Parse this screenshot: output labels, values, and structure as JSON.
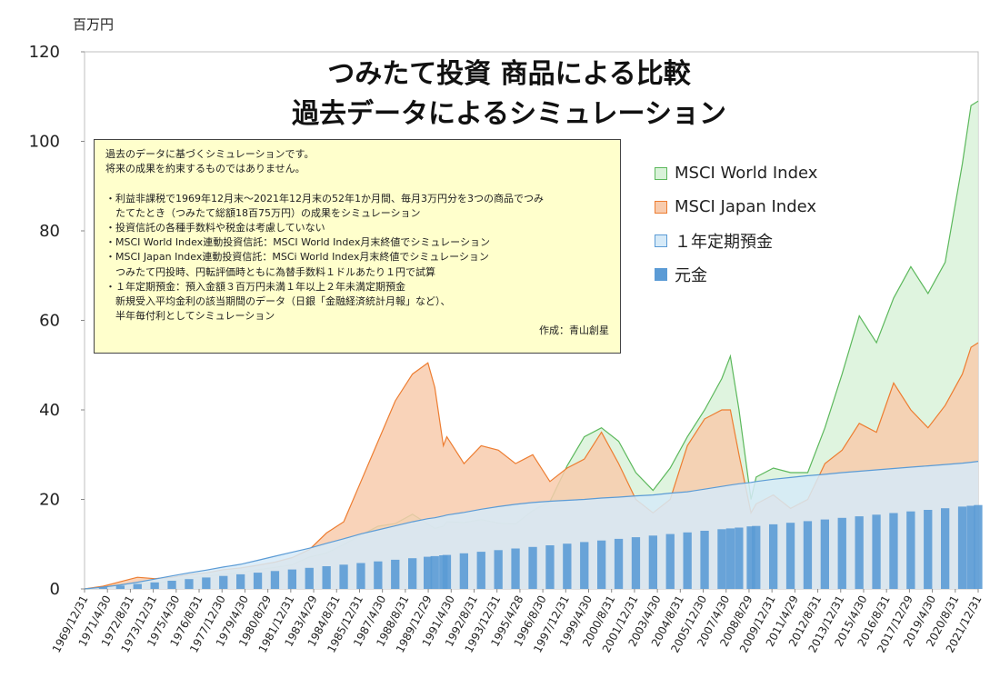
{
  "chart_data": {
    "type": "area",
    "title_lines": [
      "つみたて投資 商品による比較",
      "過去データによるシミュレーション"
    ],
    "y_unit": "百万円",
    "ylim": [
      0,
      120
    ],
    "yticks": [
      0,
      20,
      40,
      60,
      80,
      100,
      120
    ],
    "x_labels": [
      "1969/12/31",
      "1971/4/30",
      "1972/8/31",
      "1973/12/31",
      "1975/4/30",
      "1976/8/31",
      "1977/12/30",
      "1979/4/30",
      "1980/8/29",
      "1981/12/31",
      "1983/4/29",
      "1984/8/31",
      "1985/12/31",
      "1987/4/30",
      "1988/8/31",
      "1989/12/29",
      "1991/4/30",
      "1992/8/31",
      "1993/12/31",
      "1995/4/28",
      "1996/8/30",
      "1997/12/31",
      "1999/4/30",
      "2000/8/31",
      "2001/12/31",
      "2003/4/30",
      "2004/8/31",
      "2005/12/30",
      "2007/4/30",
      "2008/8/29",
      "2009/12/31",
      "2011/4/29",
      "2012/8/31",
      "2013/12/31",
      "2015/4/30",
      "2016/8/31",
      "2017/12/29",
      "2019/4/30",
      "2020/8/31",
      "2021/12/31"
    ],
    "grid": false,
    "legend_position": "right",
    "x_years": [
      1969.92,
      1971,
      1972,
      1973,
      1974,
      1975,
      1976,
      1977,
      1978,
      1979,
      1980,
      1981,
      1982,
      1983,
      1984,
      1985,
      1986,
      1987,
      1988,
      1989,
      1989.9,
      1990.3,
      1990.8,
      1991,
      1992,
      1993,
      1994,
      1995,
      1996,
      1997,
      1998,
      1999,
      2000,
      2001,
      2002,
      2003,
      2004,
      2005,
      2006,
      2007,
      2007.5,
      2008,
      2008.7,
      2009,
      2010,
      2011,
      2012,
      2013,
      2014,
      2015,
      2016,
      2017,
      2018,
      2019,
      2020,
      2021,
      2021.5,
      2021.92
    ],
    "series": [
      {
        "name": "MSCI World Index",
        "type": "area",
        "fill": "#d9f2d9",
        "stroke": "#5cb85c",
        "values": [
          0,
          0.4,
          1.0,
          1.3,
          1.2,
          1.8,
          2.4,
          2.8,
          3.3,
          3.6,
          4.3,
          4.8,
          5.4,
          7.1,
          8.0,
          9.9,
          12.0,
          14.0,
          14.6,
          16.7,
          14.5,
          13.5,
          14.0,
          15.0,
          14.8,
          15.5,
          14.7,
          14.5,
          17.5,
          19.5,
          27.5,
          34.0,
          36.0,
          33.0,
          26.0,
          22.0,
          27.0,
          34.0,
          40.0,
          47.0,
          52.0,
          40.0,
          20.0,
          25.0,
          27.0,
          26.0,
          26.0,
          36.0,
          48.0,
          61.0,
          55.0,
          65.0,
          72.0,
          66.0,
          73.0,
          95.0,
          108.0,
          109.0
        ]
      },
      {
        "name": "MSCI Japan Index",
        "type": "area",
        "fill": "#f8cbad",
        "stroke": "#ed7d31",
        "values": [
          0,
          0.6,
          1.6,
          2.6,
          2.3,
          2.6,
          3.2,
          3.6,
          4.3,
          4.7,
          5.3,
          6.0,
          7.0,
          8.8,
          12.5,
          15.0,
          24.0,
          33.0,
          42.0,
          48.0,
          50.5,
          45.0,
          32.0,
          34.0,
          28.0,
          32.0,
          31.0,
          28.0,
          30.0,
          24.0,
          27.0,
          29.0,
          35.0,
          28.0,
          20.0,
          17.0,
          20.0,
          32.0,
          38.0,
          40.0,
          40.0,
          30.0,
          17.0,
          19.0,
          21.0,
          18.0,
          20.0,
          28.0,
          31.0,
          37.0,
          35.0,
          46.0,
          40.0,
          36.0,
          41.0,
          48.0,
          54.0,
          55.0
        ]
      },
      {
        "name": "１年定期預金",
        "type": "area",
        "fill": "#d6eaf8",
        "stroke": "#5b9bd5",
        "values": [
          0,
          0.4,
          0.9,
          1.5,
          2.2,
          2.9,
          3.6,
          4.2,
          4.9,
          5.5,
          6.4,
          7.3,
          8.2,
          9.1,
          10.2,
          11.2,
          12.3,
          13.2,
          14.1,
          15.0,
          15.7,
          15.9,
          16.3,
          16.5,
          17.1,
          17.8,
          18.4,
          18.9,
          19.3,
          19.6,
          19.8,
          20.0,
          20.3,
          20.5,
          20.8,
          21.0,
          21.4,
          21.7,
          22.3,
          22.9,
          23.2,
          23.5,
          23.8,
          24.0,
          24.5,
          24.9,
          25.3,
          25.6,
          26.0,
          26.3,
          26.6,
          26.9,
          27.2,
          27.5,
          27.8,
          28.1,
          28.3,
          28.5
        ]
      },
      {
        "name": "元金",
        "type": "bar",
        "fill": "#5b9bd5",
        "stroke": "#5b9bd5",
        "values": [
          0.03,
          0.39,
          0.75,
          1.11,
          1.47,
          1.83,
          2.19,
          2.55,
          2.91,
          3.27,
          3.63,
          3.99,
          4.35,
          4.71,
          5.07,
          5.43,
          5.79,
          6.15,
          6.51,
          6.87,
          7.19,
          7.34,
          7.52,
          7.59,
          7.95,
          8.31,
          8.67,
          9.03,
          9.39,
          9.75,
          10.11,
          10.47,
          10.83,
          11.19,
          11.55,
          11.91,
          12.27,
          12.63,
          12.99,
          13.35,
          13.53,
          13.71,
          13.96,
          14.07,
          14.43,
          14.79,
          15.15,
          15.51,
          15.87,
          16.23,
          16.59,
          16.95,
          17.31,
          17.67,
          18.03,
          18.39,
          18.57,
          18.75
        ]
      }
    ]
  },
  "notes": {
    "lines": [
      "過去のデータに基づくシミュレーションです。",
      "将来の成果を約束するものではありません。",
      "",
      "・利益非課税で1969年12月末～2021年12月末の52年1か月間、毎月3万円分を3つの商品でつみ",
      "　たてたとき（つみたて総額18百75万円）の成果をシミュレーション",
      "・投資信託の各種手数料や税金は考慮していない",
      "・MSCI World Index連動投資信託：MSCI World Index月末終値でシミュレーション",
      "・MSCI Japan Index連動投資信託：MSCi World Index月末終値でシミュレーション",
      "　つみたて円投時、円転評価時ともに為替手数料１ドルあたり１円で試算",
      "・１年定期預金：預入金額３百万円未満１年以上２年未満定期預金",
      "　新規受入平均金利の該当期間のデータ（日銀「金融経済統計月報」など）、",
      "　半年毎付利としてシミュレーション"
    ],
    "author": "作成：青山創星"
  }
}
